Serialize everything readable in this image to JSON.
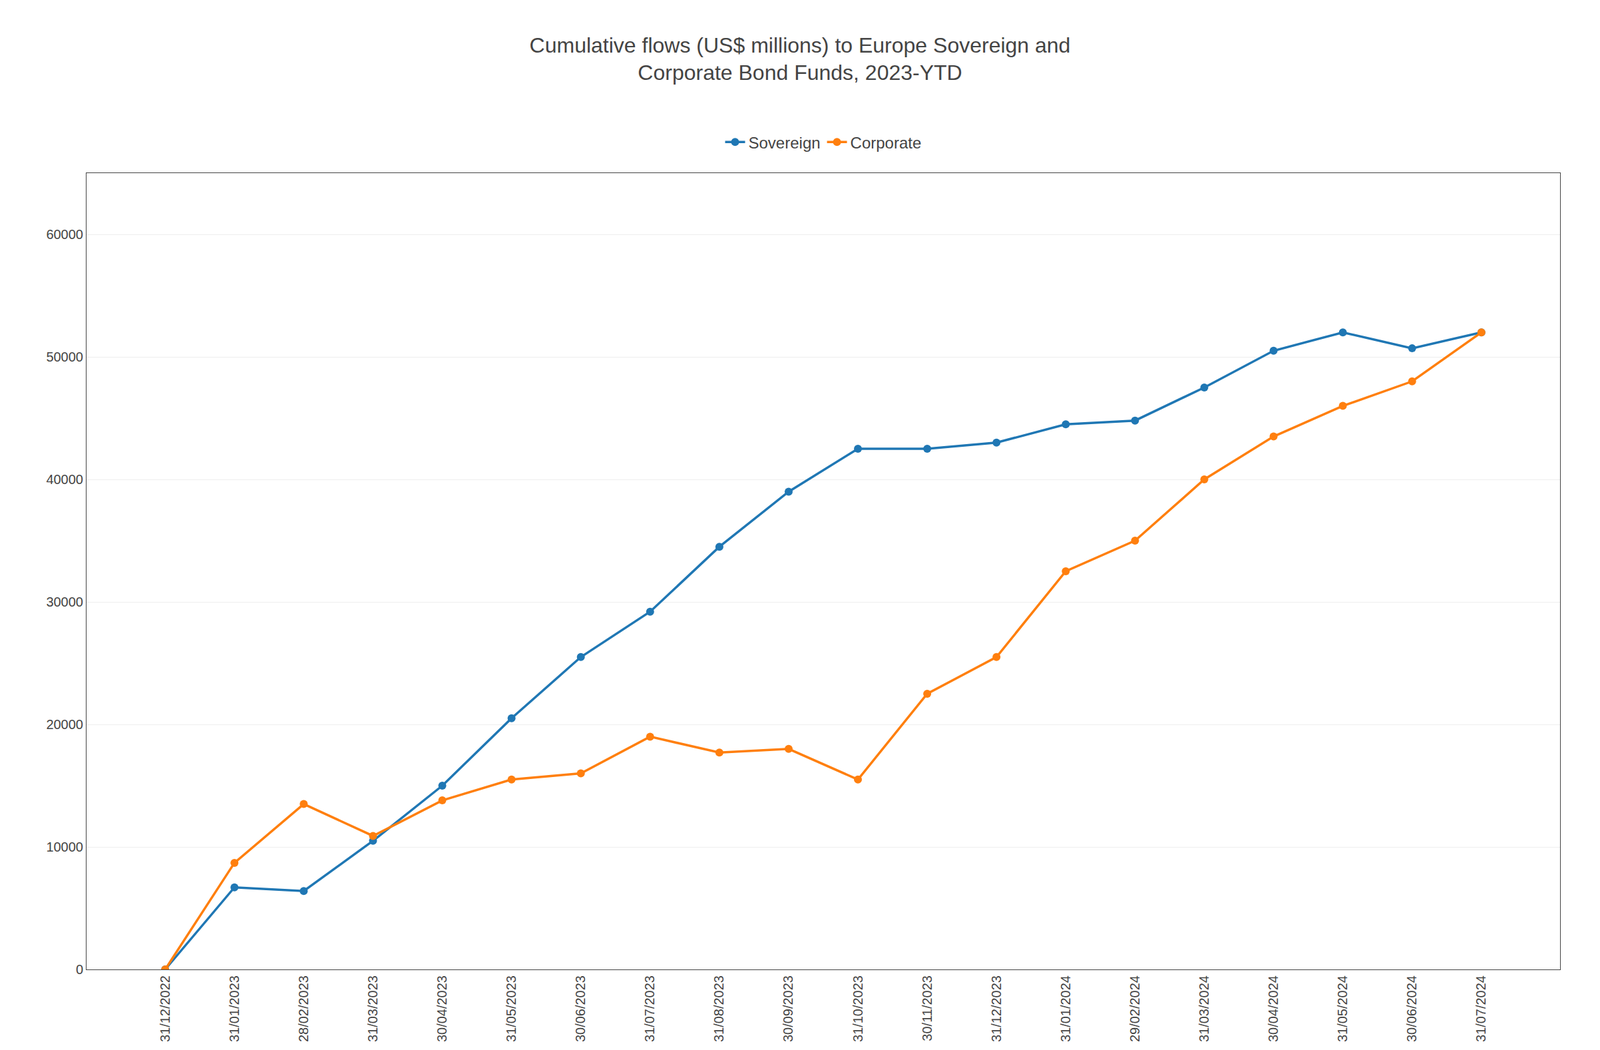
{
  "chart_data": {
    "type": "line",
    "title": "Cumulative flows (US$ millions) to Europe Sovereign and\nCorporate Bond Funds, 2023-YTD",
    "categories": [
      "31/12/2022",
      "31/01/2023",
      "28/02/2023",
      "31/03/2023",
      "30/04/2023",
      "31/05/2023",
      "30/06/2023",
      "31/07/2023",
      "31/08/2023",
      "30/09/2023",
      "31/10/2023",
      "30/11/2023",
      "31/12/2023",
      "31/01/2024",
      "29/02/2024",
      "31/03/2024",
      "30/04/2024",
      "31/05/2024",
      "30/06/2024",
      "31/07/2024"
    ],
    "series": [
      {
        "name": "Sovereign",
        "marker": "circle",
        "line_style": "solid",
        "values": [
          0,
          6700,
          6400,
          10500,
          15000,
          20500,
          25500,
          29200,
          34500,
          39000,
          42500,
          42500,
          43000,
          44500,
          44800,
          47500,
          50500,
          52000,
          50700,
          52000
        ]
      },
      {
        "name": "Corporate",
        "marker": "circle",
        "line_style": "solid",
        "values": [
          0,
          8700,
          13500,
          10900,
          13800,
          15500,
          16000,
          19000,
          17700,
          18000,
          15500,
          22500,
          25500,
          32500,
          35000,
          40000,
          43500,
          46000,
          48000,
          52000
        ]
      }
    ],
    "ylim": [
      0,
      65000
    ],
    "yticks": [
      0,
      10000,
      20000,
      30000,
      40000,
      50000,
      60000
    ],
    "grid": true,
    "legend": "upper center"
  }
}
